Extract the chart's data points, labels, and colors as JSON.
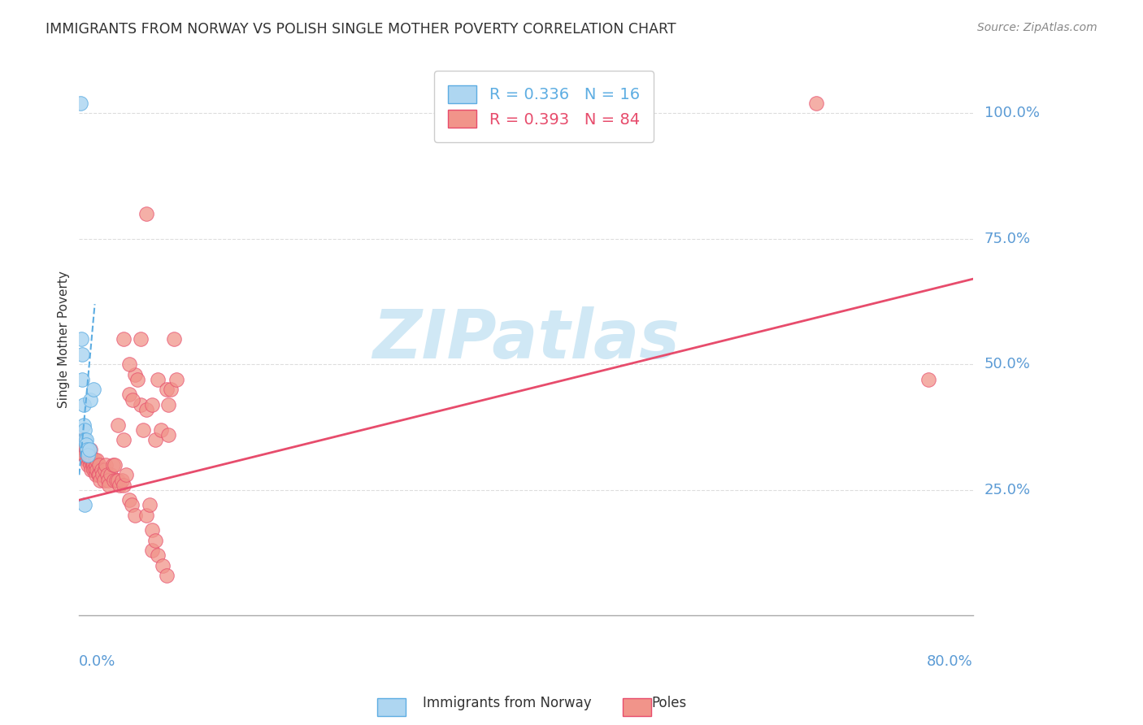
{
  "title": "IMMIGRANTS FROM NORWAY VS POLISH SINGLE MOTHER POVERTY CORRELATION CHART",
  "source": "Source: ZipAtlas.com",
  "ylabel": "Single Mother Poverty",
  "ylabel_right_ticks": [
    "100.0%",
    "75.0%",
    "50.0%",
    "25.0%"
  ],
  "ylabel_right_vals": [
    1.0,
    0.75,
    0.5,
    0.25
  ],
  "xmin": 0.0,
  "xmax": 0.8,
  "ymin": 0.0,
  "ymax": 1.1,
  "legend_norway_R": "0.336",
  "legend_norway_N": "16",
  "legend_poles_R": "0.393",
  "legend_poles_N": "84",
  "norway_color": "#AED6F1",
  "poles_color": "#F1948A",
  "norway_edge_color": "#5DADE2",
  "poles_edge_color": "#E74C6C",
  "norway_line_color": "#5DADE2",
  "poles_line_color": "#E74C6C",
  "norway_scatter_x": [
    0.001,
    0.002,
    0.003,
    0.003,
    0.004,
    0.004,
    0.005,
    0.005,
    0.005,
    0.006,
    0.006,
    0.007,
    0.008,
    0.009,
    0.01,
    0.013
  ],
  "norway_scatter_y": [
    1.02,
    0.55,
    0.52,
    0.47,
    0.42,
    0.38,
    0.37,
    0.35,
    0.22,
    0.35,
    0.34,
    0.33,
    0.32,
    0.33,
    0.43,
    0.45
  ],
  "poles_scatter_x": [
    0.003,
    0.004,
    0.004,
    0.005,
    0.005,
    0.006,
    0.007,
    0.007,
    0.008,
    0.008,
    0.009,
    0.009,
    0.01,
    0.01,
    0.011,
    0.011,
    0.012,
    0.012,
    0.013,
    0.013,
    0.014,
    0.014,
    0.015,
    0.015,
    0.016,
    0.016,
    0.017,
    0.018,
    0.018,
    0.019,
    0.02,
    0.021,
    0.022,
    0.023,
    0.024,
    0.025,
    0.026,
    0.027,
    0.028,
    0.03,
    0.031,
    0.032,
    0.033,
    0.035,
    0.036,
    0.038,
    0.04,
    0.042,
    0.045,
    0.047,
    0.05,
    0.055,
    0.06,
    0.065,
    0.065,
    0.07,
    0.075,
    0.078,
    0.08,
    0.035,
    0.04,
    0.045,
    0.05,
    0.055,
    0.057,
    0.06,
    0.063,
    0.068,
    0.04,
    0.045,
    0.048,
    0.052,
    0.06,
    0.065,
    0.068,
    0.07,
    0.073,
    0.078,
    0.08,
    0.082,
    0.085,
    0.087,
    0.76,
    0.66
  ],
  "poles_scatter_y": [
    0.35,
    0.34,
    0.32,
    0.33,
    0.32,
    0.33,
    0.32,
    0.31,
    0.31,
    0.3,
    0.32,
    0.31,
    0.33,
    0.3,
    0.31,
    0.29,
    0.3,
    0.31,
    0.3,
    0.29,
    0.31,
    0.29,
    0.3,
    0.28,
    0.29,
    0.31,
    0.28,
    0.3,
    0.28,
    0.27,
    0.29,
    0.28,
    0.27,
    0.29,
    0.3,
    0.28,
    0.27,
    0.26,
    0.28,
    0.3,
    0.27,
    0.3,
    0.27,
    0.27,
    0.26,
    0.27,
    0.26,
    0.28,
    0.23,
    0.22,
    0.2,
    0.55,
    0.2,
    0.17,
    0.13,
    0.12,
    0.1,
    0.08,
    0.42,
    0.38,
    0.35,
    0.44,
    0.48,
    0.42,
    0.37,
    0.41,
    0.22,
    0.15,
    0.55,
    0.5,
    0.43,
    0.47,
    0.8,
    0.42,
    0.35,
    0.47,
    0.37,
    0.45,
    0.36,
    0.45,
    0.55,
    0.47,
    0.47,
    1.02
  ],
  "norway_line_x": [
    0.0,
    0.014
  ],
  "norway_line_y_start": 0.28,
  "norway_line_y_end": 0.62,
  "poles_line_x_start": 0.0,
  "poles_line_x_end": 0.8,
  "poles_line_y_start": 0.23,
  "poles_line_y_end": 0.67,
  "background_color": "#FFFFFF",
  "watermark_text": "ZIPatlas",
  "watermark_color": "#D0E8F5",
  "grid_color": "#DDDDDD",
  "spine_color": "#AAAAAA",
  "label_color": "#5B9BD5",
  "title_color": "#333333",
  "source_color": "#888888"
}
